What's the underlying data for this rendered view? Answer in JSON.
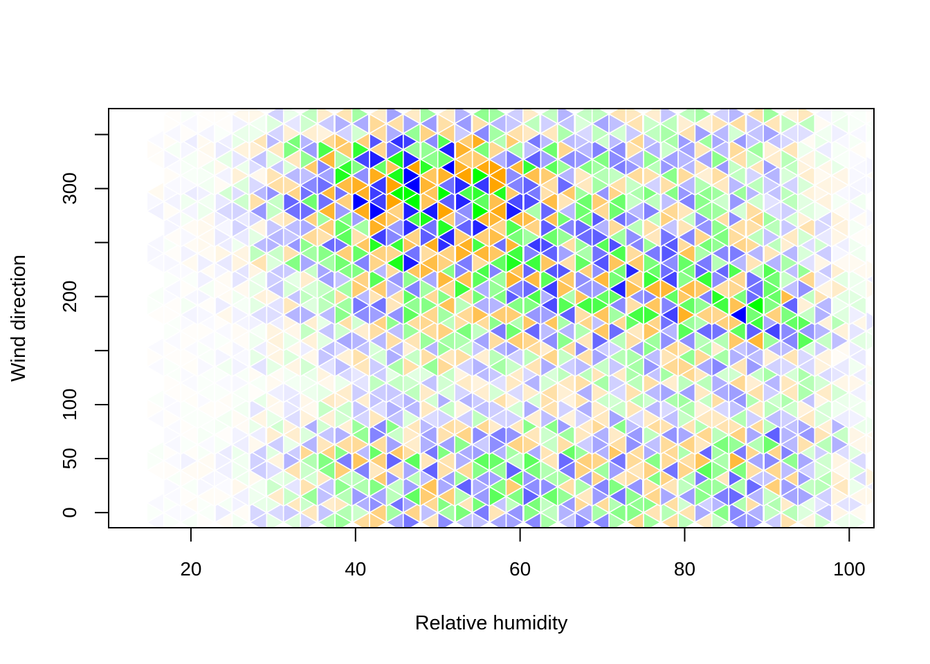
{
  "chart_data": {
    "type": "heatmap",
    "subtype": "hexbin",
    "title": "",
    "xlabel": "Relative humidity",
    "ylabel": "Wind direction",
    "xlim": [
      10,
      103
    ],
    "ylim": [
      -14,
      374
    ],
    "xticks": [
      20,
      40,
      60,
      80,
      100
    ],
    "yticks": [
      0,
      50,
      100,
      150,
      200,
      250,
      300,
      350
    ],
    "yticks_labeled": [
      0,
      50,
      100,
      200,
      300
    ],
    "grid": false,
    "legend": "none",
    "colors": [
      "#0000ff",
      "#00ff00",
      "#ffa500"
    ],
    "cell_border": "#ffffff",
    "hex_columns_x": [
      16.7,
      20.8,
      25.0,
      29.2,
      33.3,
      37.5,
      41.7,
      45.8,
      50.0,
      54.2,
      58.3,
      62.5,
      66.7,
      70.8,
      75.0,
      79.2,
      83.3,
      87.5,
      91.7,
      95.8,
      100.0
    ],
    "hex_rows_y": [
      0,
      24,
      48,
      72,
      96,
      120,
      144,
      168,
      192,
      216,
      240,
      264,
      288,
      312,
      336,
      360
    ],
    "density_note_rows": [
      "each row lists relative intensity (0-1) per hex column, low y to high y",
      "intensity peaks near x 40-55, y 300-320 and near x 88-92, y 180-200"
    ],
    "density": [
      [
        0.02,
        0.03,
        0.05,
        0.12,
        0.22,
        0.3,
        0.35,
        0.38,
        0.36,
        0.4,
        0.42,
        0.38,
        0.36,
        0.34,
        0.32,
        0.3,
        0.32,
        0.34,
        0.3,
        0.18,
        0.1
      ],
      [
        0.02,
        0.03,
        0.06,
        0.15,
        0.28,
        0.38,
        0.42,
        0.45,
        0.44,
        0.46,
        0.48,
        0.44,
        0.4,
        0.42,
        0.38,
        0.4,
        0.42,
        0.4,
        0.36,
        0.22,
        0.1
      ],
      [
        0.02,
        0.04,
        0.08,
        0.18,
        0.3,
        0.4,
        0.44,
        0.46,
        0.48,
        0.46,
        0.44,
        0.46,
        0.42,
        0.44,
        0.4,
        0.44,
        0.46,
        0.62,
        0.44,
        0.24,
        0.1
      ],
      [
        0.02,
        0.03,
        0.06,
        0.14,
        0.24,
        0.3,
        0.34,
        0.36,
        0.34,
        0.36,
        0.34,
        0.36,
        0.32,
        0.34,
        0.32,
        0.38,
        0.4,
        0.48,
        0.4,
        0.22,
        0.08
      ],
      [
        0.01,
        0.02,
        0.04,
        0.08,
        0.12,
        0.16,
        0.2,
        0.22,
        0.24,
        0.22,
        0.24,
        0.26,
        0.24,
        0.26,
        0.24,
        0.26,
        0.28,
        0.3,
        0.26,
        0.16,
        0.06
      ],
      [
        0.01,
        0.02,
        0.03,
        0.06,
        0.1,
        0.14,
        0.18,
        0.2,
        0.22,
        0.22,
        0.24,
        0.24,
        0.26,
        0.26,
        0.28,
        0.3,
        0.3,
        0.3,
        0.26,
        0.16,
        0.06
      ],
      [
        0.01,
        0.02,
        0.04,
        0.08,
        0.12,
        0.18,
        0.24,
        0.28,
        0.3,
        0.3,
        0.32,
        0.32,
        0.32,
        0.3,
        0.32,
        0.34,
        0.34,
        0.32,
        0.26,
        0.16,
        0.06
      ],
      [
        0.01,
        0.02,
        0.05,
        0.1,
        0.18,
        0.26,
        0.34,
        0.38,
        0.4,
        0.42,
        0.42,
        0.44,
        0.44,
        0.42,
        0.44,
        0.46,
        0.5,
        0.6,
        0.48,
        0.2,
        0.08
      ],
      [
        0.02,
        0.03,
        0.06,
        0.12,
        0.22,
        0.32,
        0.4,
        0.44,
        0.46,
        0.48,
        0.46,
        0.5,
        0.52,
        0.56,
        0.58,
        0.6,
        0.62,
        0.82,
        0.52,
        0.22,
        0.1
      ],
      [
        0.02,
        0.04,
        0.08,
        0.16,
        0.26,
        0.38,
        0.5,
        0.56,
        0.54,
        0.56,
        0.58,
        0.62,
        0.66,
        0.64,
        0.6,
        0.58,
        0.52,
        0.46,
        0.36,
        0.18,
        0.08
      ],
      [
        0.03,
        0.05,
        0.1,
        0.22,
        0.34,
        0.48,
        0.6,
        0.66,
        0.62,
        0.6,
        0.62,
        0.58,
        0.56,
        0.54,
        0.5,
        0.48,
        0.44,
        0.4,
        0.3,
        0.14,
        0.06
      ],
      [
        0.04,
        0.06,
        0.12,
        0.26,
        0.4,
        0.56,
        0.68,
        0.72,
        0.66,
        0.62,
        0.58,
        0.52,
        0.48,
        0.44,
        0.4,
        0.38,
        0.36,
        0.32,
        0.24,
        0.12,
        0.04
      ],
      [
        0.04,
        0.06,
        0.14,
        0.3,
        0.46,
        0.66,
        0.82,
        0.88,
        0.84,
        0.8,
        0.66,
        0.54,
        0.46,
        0.4,
        0.36,
        0.34,
        0.32,
        0.28,
        0.2,
        0.1,
        0.04
      ],
      [
        0.03,
        0.06,
        0.12,
        0.26,
        0.42,
        0.72,
        0.96,
        1.0,
        0.98,
        0.92,
        0.7,
        0.52,
        0.42,
        0.36,
        0.32,
        0.3,
        0.28,
        0.26,
        0.18,
        0.08,
        0.03
      ],
      [
        0.03,
        0.05,
        0.1,
        0.22,
        0.36,
        0.54,
        0.66,
        0.7,
        0.66,
        0.62,
        0.52,
        0.44,
        0.38,
        0.34,
        0.3,
        0.3,
        0.32,
        0.3,
        0.2,
        0.08,
        0.03
      ],
      [
        0.02,
        0.03,
        0.06,
        0.12,
        0.2,
        0.28,
        0.34,
        0.36,
        0.34,
        0.32,
        0.3,
        0.28,
        0.26,
        0.24,
        0.24,
        0.26,
        0.28,
        0.26,
        0.18,
        0.06,
        0.02
      ]
    ]
  }
}
